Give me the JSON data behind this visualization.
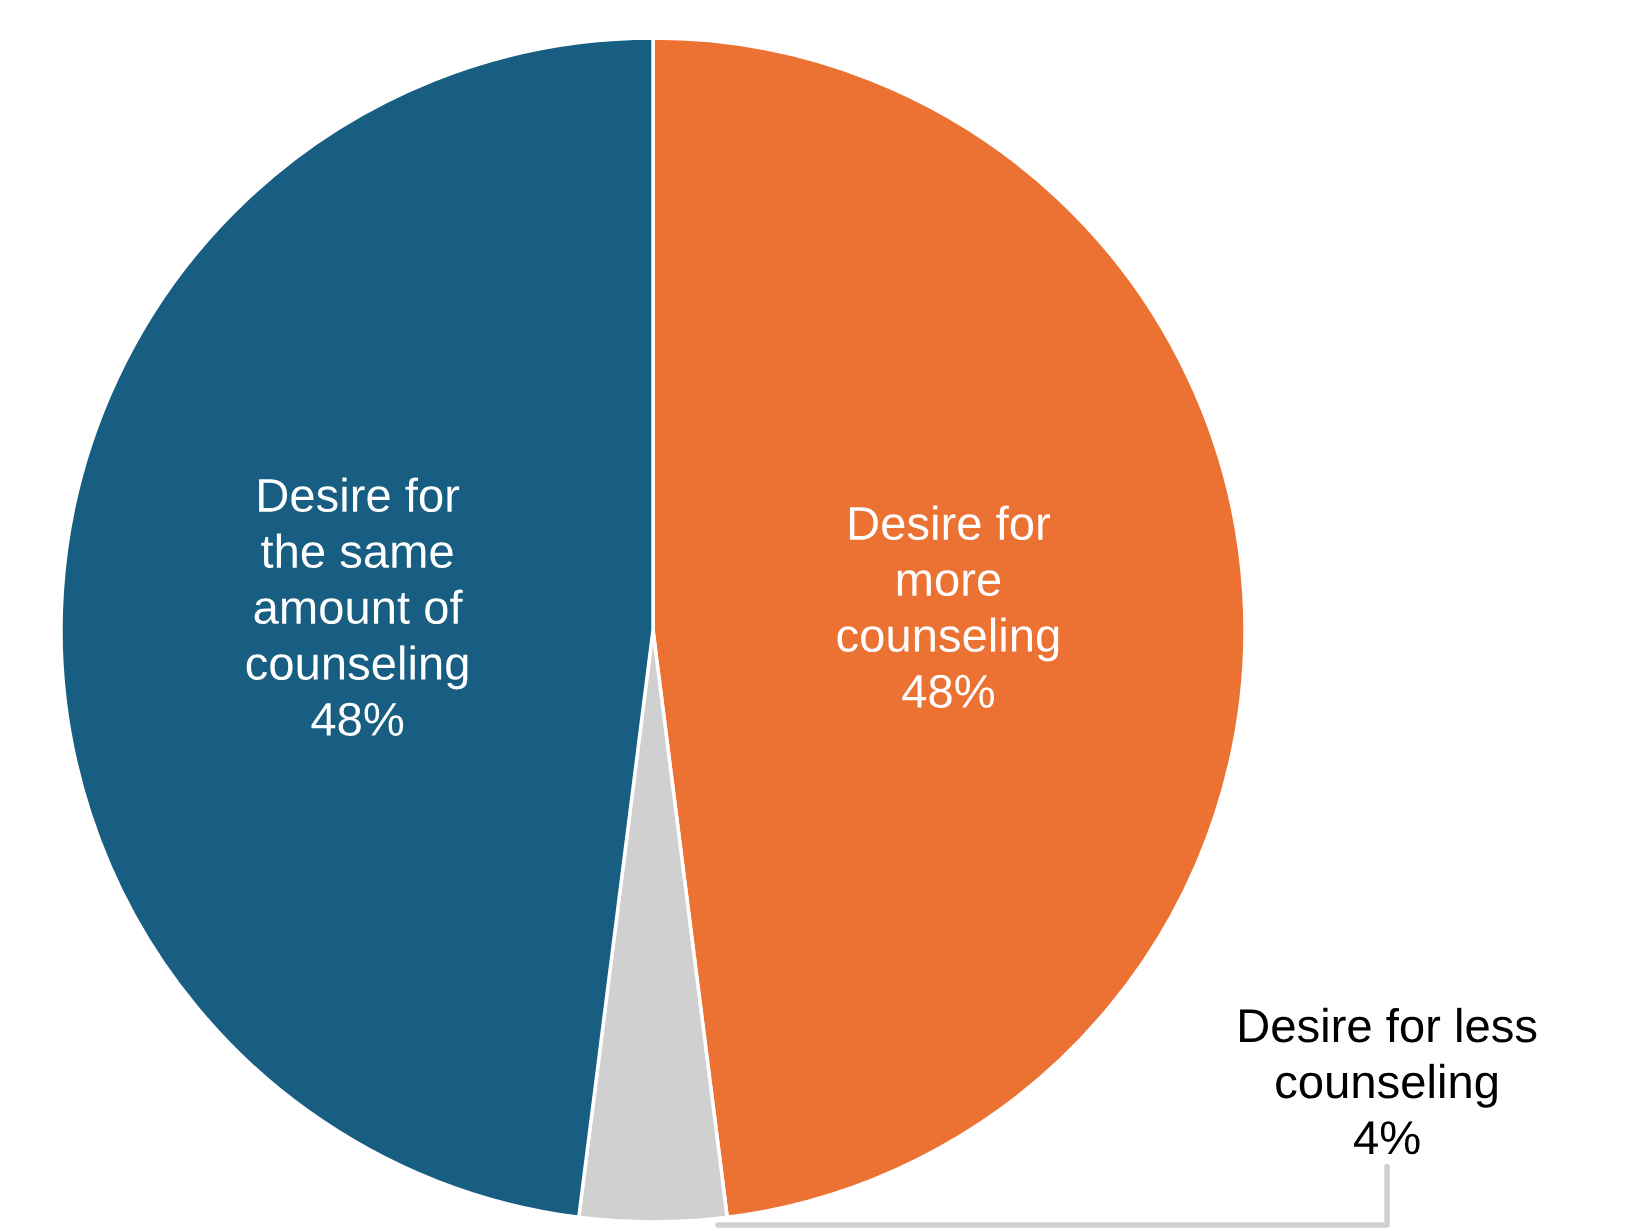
{
  "chart_data": {
    "type": "pie",
    "categories": [
      "Desire for more counseling",
      "Desire for less counseling",
      "Desire for the same amount of counseling"
    ],
    "values": [
      48,
      4,
      48
    ],
    "colors": [
      "#eb7233",
      "#d0d0d0",
      "#175e82"
    ],
    "value_labels": [
      "48%",
      "4%",
      "48%"
    ],
    "legend": false
  }
}
